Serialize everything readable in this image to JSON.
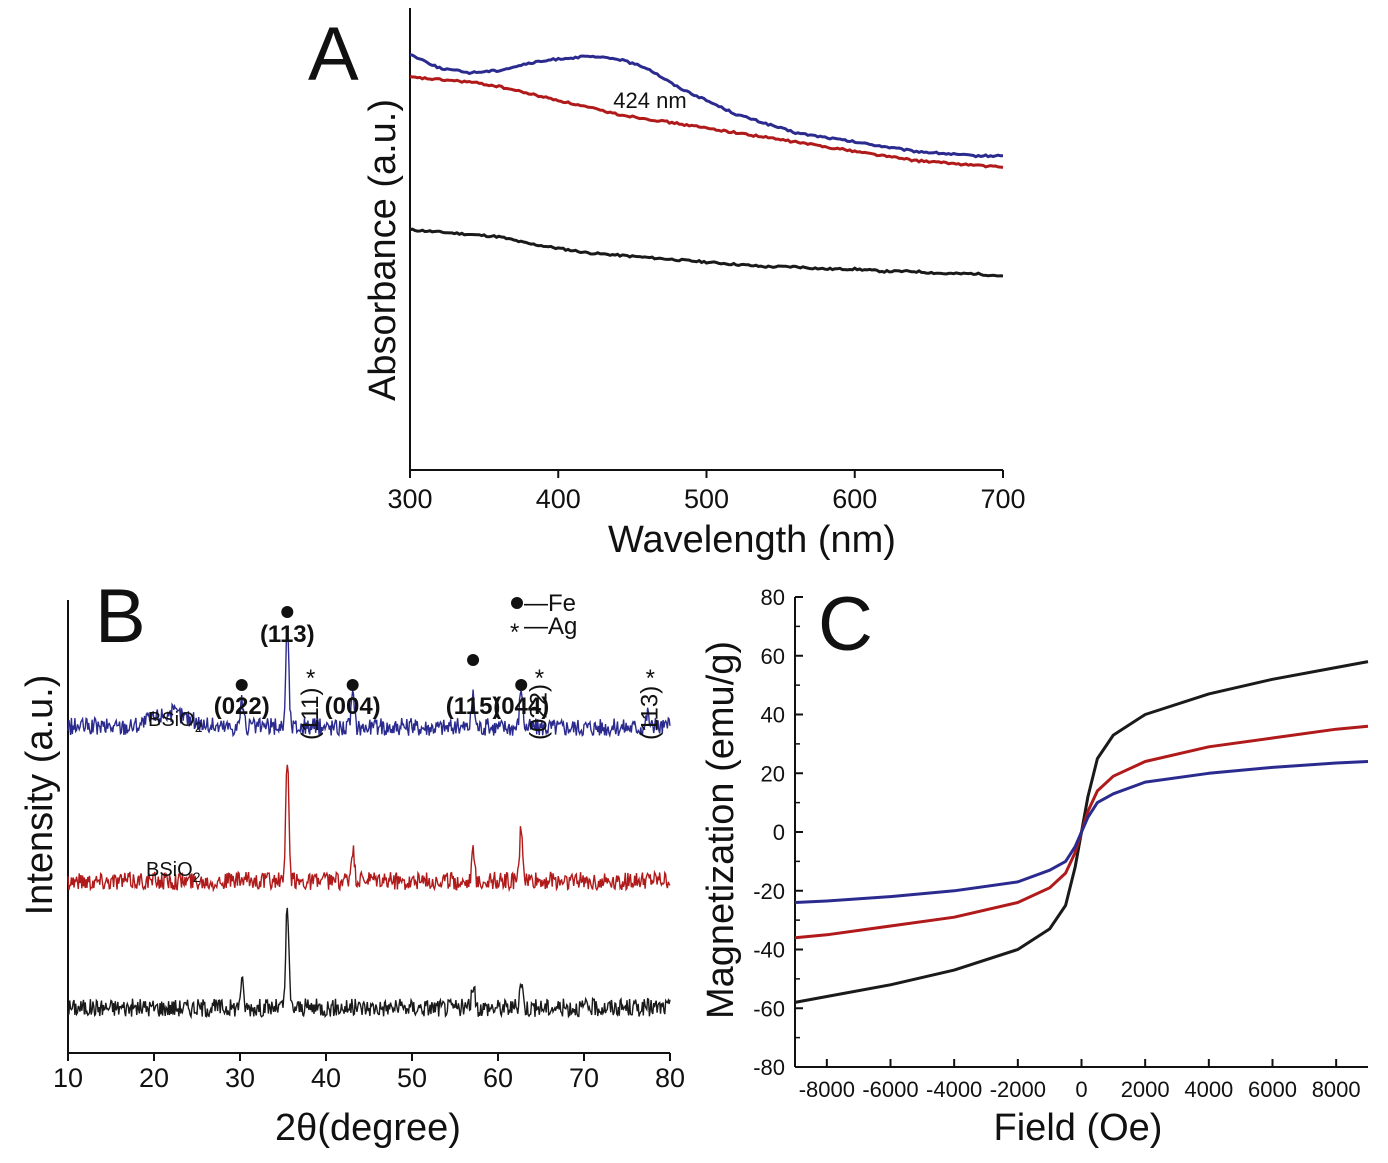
{
  "colors": {
    "series1": "#1a1a1a",
    "series2": "#b11a1a",
    "series3": "#2b2b8f"
  },
  "panelA": {
    "letter": "A",
    "annotation": "424 nm",
    "chart_data": {
      "type": "line",
      "xlabel": "Wavelength (nm)",
      "ylabel": "Absorbance (a.u.)",
      "xlim": [
        300,
        700
      ],
      "ylim": [
        0,
        1
      ],
      "xticks": [
        "300",
        "400",
        "500",
        "600",
        "700"
      ],
      "series": [
        {
          "name": "black",
          "x": [
            300,
            320,
            340,
            360,
            380,
            400,
            420,
            440,
            460,
            480,
            500,
            520,
            540,
            560,
            580,
            600,
            620,
            640,
            660,
            680,
            700
          ],
          "values": [
            0.52,
            0.515,
            0.51,
            0.505,
            0.49,
            0.48,
            0.47,
            0.465,
            0.46,
            0.455,
            0.45,
            0.445,
            0.44,
            0.44,
            0.435,
            0.435,
            0.43,
            0.43,
            0.425,
            0.425,
            0.42
          ]
        },
        {
          "name": "red",
          "x": [
            300,
            320,
            340,
            360,
            380,
            400,
            420,
            440,
            460,
            480,
            500,
            520,
            540,
            560,
            580,
            600,
            620,
            640,
            660,
            680,
            700
          ],
          "values": [
            0.85,
            0.845,
            0.84,
            0.83,
            0.815,
            0.8,
            0.785,
            0.77,
            0.76,
            0.75,
            0.74,
            0.73,
            0.72,
            0.71,
            0.7,
            0.69,
            0.68,
            0.67,
            0.665,
            0.66,
            0.655
          ]
        },
        {
          "name": "blue",
          "x": [
            300,
            320,
            340,
            360,
            380,
            400,
            420,
            440,
            460,
            480,
            500,
            520,
            540,
            560,
            580,
            600,
            620,
            640,
            660,
            680,
            700
          ],
          "values": [
            0.9,
            0.87,
            0.86,
            0.865,
            0.88,
            0.89,
            0.895,
            0.89,
            0.87,
            0.83,
            0.8,
            0.77,
            0.75,
            0.73,
            0.72,
            0.71,
            0.7,
            0.69,
            0.685,
            0.68,
            0.68
          ]
        }
      ]
    }
  },
  "panelB": {
    "letter": "B",
    "legend_fe": "—Fe",
    "legend_ag": "—Ag",
    "label_top": "BSiO",
    "label_mid": "BSiO",
    "sub2": "2",
    "peaks": [
      {
        "hkl": "(022)",
        "marker": "●",
        "x": 30.2,
        "vertical": false,
        "bold": true
      },
      {
        "hkl": "(113)",
        "marker": "●",
        "x": 35.5,
        "vertical": false,
        "bold": true
      },
      {
        "hkl": "(111)",
        "marker": "*",
        "x": 37.9,
        "vertical": true,
        "bold": false
      },
      {
        "hkl": "(004)",
        "marker": "●",
        "x": 43.1,
        "vertical": false,
        "bold": true
      },
      {
        "hkl": "(115)",
        "marker": "●",
        "x": 57.1,
        "vertical": false,
        "bold": true
      },
      {
        "hkl": "(044)",
        "marker": "●",
        "x": 62.7,
        "vertical": false,
        "bold": true
      },
      {
        "hkl": "(022)",
        "marker": "*",
        "x": 64.5,
        "vertical": true,
        "bold": false
      },
      {
        "hkl": "(113)",
        "marker": "*",
        "x": 77.4,
        "vertical": true,
        "bold": false
      }
    ],
    "chart_data": {
      "type": "line",
      "xlabel": "2θ(degree)",
      "ylabel": "Intensity (a.u.)",
      "xlim": [
        10,
        80
      ],
      "xticks": [
        "10",
        "20",
        "30",
        "40",
        "50",
        "60",
        "70",
        "80"
      ],
      "series": [
        {
          "name": "black",
          "baseline": 0.1,
          "peaks": [
            [
              30.2,
              0.06
            ],
            [
              35.5,
              0.22
            ],
            [
              57.1,
              0.05
            ],
            [
              62.7,
              0.06
            ]
          ]
        },
        {
          "name": "red",
          "baseline": 0.38,
          "peaks": [
            [
              35.5,
              0.26
            ],
            [
              43.1,
              0.07
            ],
            [
              57.1,
              0.06
            ],
            [
              62.7,
              0.12
            ]
          ]
        },
        {
          "name": "blue",
          "baseline": 0.72,
          "peaks": [
            [
              22.0,
              0.03
            ],
            [
              30.2,
              0.06
            ],
            [
              35.5,
              0.22
            ],
            [
              43.1,
              0.07
            ],
            [
              57.1,
              0.07
            ],
            [
              62.7,
              0.09
            ],
            [
              77.4,
              0.03
            ]
          ]
        }
      ]
    }
  },
  "panelC": {
    "letter": "C",
    "chart_data": {
      "type": "line",
      "xlabel": "Field (Oe)",
      "ylabel": "Magnetization (emu/g)",
      "xlim": [
        -9000,
        9000
      ],
      "ylim": [
        -80,
        80
      ],
      "xticks": [
        "-8000",
        "-6000",
        "-4000",
        "-2000",
        "0",
        "2000",
        "4000",
        "6000",
        "8000"
      ],
      "yticks": [
        "-80",
        "-60",
        "-40",
        "-20",
        "0",
        "20",
        "40",
        "60",
        "80"
      ],
      "series": [
        {
          "name": "black",
          "x": [
            -9000,
            -8000,
            -6000,
            -4000,
            -2000,
            -1000,
            -500,
            -200,
            0,
            200,
            500,
            1000,
            2000,
            4000,
            6000,
            8000,
            9000
          ],
          "values": [
            -58,
            -56,
            -52,
            -47,
            -40,
            -33,
            -25,
            -12,
            0,
            12,
            25,
            33,
            40,
            47,
            52,
            56,
            58
          ]
        },
        {
          "name": "red",
          "x": [
            -9000,
            -8000,
            -6000,
            -4000,
            -2000,
            -1000,
            -500,
            -200,
            0,
            200,
            500,
            1000,
            2000,
            4000,
            6000,
            8000,
            9000
          ],
          "values": [
            -36,
            -35,
            -32,
            -29,
            -24,
            -19,
            -14,
            -7,
            0,
            7,
            14,
            19,
            24,
            29,
            32,
            35,
            36
          ]
        },
        {
          "name": "blue",
          "x": [
            -9000,
            -8000,
            -6000,
            -4000,
            -2000,
            -1000,
            -500,
            -200,
            0,
            200,
            500,
            1000,
            2000,
            4000,
            6000,
            8000,
            9000
          ],
          "values": [
            -24,
            -23.5,
            -22,
            -20,
            -17,
            -13,
            -10,
            -5,
            0,
            5,
            10,
            13,
            17,
            20,
            22,
            23.5,
            24
          ]
        }
      ]
    }
  }
}
